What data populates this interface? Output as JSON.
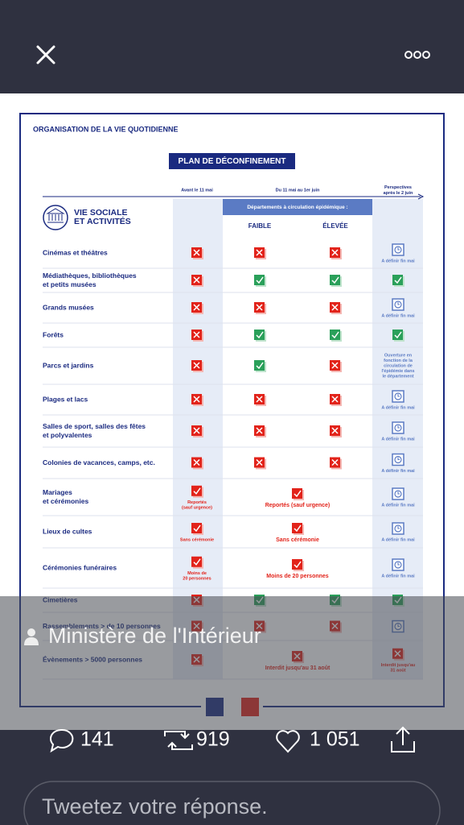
{
  "infographic": {
    "title": "ORGANISATION DE LA VIE QUOTIDIENNE",
    "banner": "PLAN DE DÉCONFINEMENT",
    "columns": {
      "avant": [
        "Avant le 11 mai"
      ],
      "periode": [
        "Du 11 mai au 1er juin"
      ],
      "apres": [
        "Perspectives",
        "après le 2 juin"
      ]
    },
    "subheader": "Départements à circulation épidémique :",
    "levels": [
      "FAIBLE",
      "ÉLEVÉE"
    ],
    "section": [
      "VIE SOCIALE",
      "ET ACTIVITÉS"
    ],
    "rows": [
      {
        "label": [
          "Cinémas et théâtres"
        ],
        "cells": {
          "avant": {
            "icon": "x"
          },
          "faible": {
            "icon": "x"
          },
          "elevee": {
            "icon": "x"
          },
          "apres": {
            "icon": "clock",
            "text": [
              "A définir fin mai"
            ]
          }
        }
      },
      {
        "label": [
          "Médiathèques, bibliothèques",
          "et petits musées"
        ],
        "cells": {
          "avant": {
            "icon": "x"
          },
          "faible": {
            "icon": "check"
          },
          "elevee": {
            "icon": "check"
          },
          "apres": {
            "icon": "check"
          }
        }
      },
      {
        "label": [
          "Grands musées"
        ],
        "cells": {
          "avant": {
            "icon": "x"
          },
          "faible": {
            "icon": "x"
          },
          "elevee": {
            "icon": "x"
          },
          "apres": {
            "icon": "clock",
            "text": [
              "A définir fin mai"
            ]
          }
        }
      },
      {
        "label": [
          "Forêts"
        ],
        "cells": {
          "avant": {
            "icon": "x"
          },
          "faible": {
            "icon": "check"
          },
          "elevee": {
            "icon": "check"
          },
          "apres": {
            "icon": "check"
          }
        }
      },
      {
        "label": [
          "Parcs et jardins"
        ],
        "cells": {
          "avant": {
            "icon": "x"
          },
          "faible": {
            "icon": "check"
          },
          "elevee": {
            "icon": "x"
          },
          "apres": {
            "text": [
              "Ouverture en",
              "fonction de la",
              "circulation de",
              "l'épidémie dans",
              "le département"
            ]
          }
        }
      },
      {
        "label": [
          "Plages et lacs"
        ],
        "cells": {
          "avant": {
            "icon": "x"
          },
          "faible": {
            "icon": "x"
          },
          "elevee": {
            "icon": "x"
          },
          "apres": {
            "icon": "clock",
            "text": [
              "A définir fin mai"
            ]
          }
        }
      },
      {
        "label": [
          "Salles de sport, salles des fêtes",
          "et polyvalentes"
        ],
        "cells": {
          "avant": {
            "icon": "x"
          },
          "faible": {
            "icon": "x"
          },
          "elevee": {
            "icon": "x"
          },
          "apres": {
            "icon": "clock",
            "text": [
              "A définir fin mai"
            ]
          }
        }
      },
      {
        "label": [
          "Colonies de vacances, camps, etc."
        ],
        "cells": {
          "avant": {
            "icon": "x"
          },
          "faible": {
            "icon": "x"
          },
          "elevee": {
            "icon": "x"
          },
          "apres": {
            "icon": "clock",
            "text": [
              "A définir fin mai"
            ]
          }
        }
      },
      {
        "label": [
          "Mariages",
          "et cérémonies"
        ],
        "cells": {
          "avant": {
            "icon": "report",
            "text": [
              "Reportés",
              "(sauf urgence)"
            ]
          },
          "periode": {
            "icon": "report",
            "text": [
              "Reportés (sauf urgence)"
            ]
          },
          "apres": {
            "icon": "clock",
            "text": [
              "A définir fin mai"
            ]
          }
        }
      },
      {
        "label": [
          "Lieux de cultes"
        ],
        "cells": {
          "avant": {
            "icon": "report",
            "text": [
              "Sans cérémonie"
            ]
          },
          "periode": {
            "icon": "report",
            "text": [
              "Sans cérémonie"
            ]
          },
          "apres": {
            "icon": "clock",
            "text": [
              "A définir fin mai"
            ]
          }
        }
      },
      {
        "label": [
          "Cérémonies funéraires"
        ],
        "cells": {
          "avant": {
            "icon": "report",
            "text": [
              "Moins de",
              "20 personnes"
            ]
          },
          "periode": {
            "icon": "report",
            "text": [
              "Moins de 20 personnes"
            ]
          },
          "apres": {
            "icon": "clock",
            "text": [
              "A définir fin mai"
            ]
          }
        }
      },
      {
        "label": [
          "Cimetières"
        ],
        "cells": {
          "avant": {
            "icon": "x"
          },
          "faible": {
            "icon": "check"
          },
          "elevee": {
            "icon": "check"
          },
          "apres": {
            "icon": "check"
          }
        }
      },
      {
        "label": [
          "Rassemblements > de 10 personnes"
        ],
        "cells": {
          "avant": {
            "icon": "x"
          },
          "faible": {
            "icon": "x"
          },
          "elevee": {
            "icon": "x"
          },
          "apres": {
            "icon": "clock"
          }
        }
      },
      {
        "label": [
          "Évènements > 5000 personnes"
        ],
        "cells": {
          "avant": {
            "icon": "x"
          },
          "periode": {
            "icon": "x",
            "text": [
              "Interdit jusqu'au 31 août"
            ]
          },
          "apres": {
            "icon": "x",
            "text": [
              "Interdit jusqu'au",
              "31 août"
            ]
          }
        }
      }
    ]
  },
  "overlay": {
    "author": "Ministère de l'Intérieur"
  },
  "actions": {
    "replies": "141",
    "retweets": "919",
    "likes": "1 051"
  },
  "reply_placeholder": "Tweetez votre réponse."
}
